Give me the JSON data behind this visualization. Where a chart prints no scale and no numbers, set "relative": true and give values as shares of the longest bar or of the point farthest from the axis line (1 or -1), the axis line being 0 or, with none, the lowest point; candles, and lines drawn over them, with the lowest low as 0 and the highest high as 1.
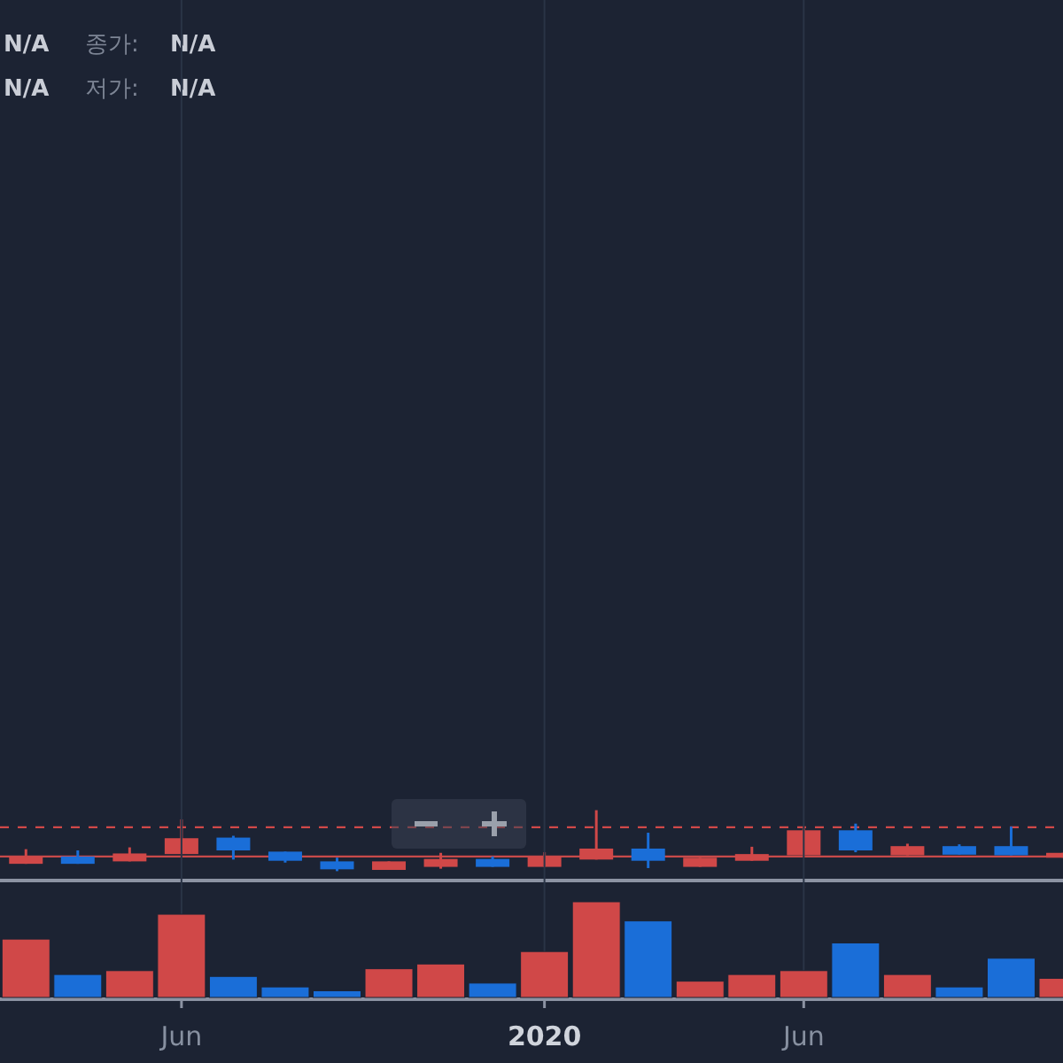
{
  "chart_data": [
    {
      "type": "candlestick",
      "relative": true,
      "annotations": [
        "N/A",
        "종가:",
        "N/A",
        "N/A",
        "저가:",
        "N/A"
      ],
      "categories": [
        null,
        null,
        null,
        null,
        null,
        null,
        null,
        null,
        null,
        null,
        null,
        null,
        null,
        null,
        null,
        null,
        null,
        null,
        null,
        null,
        null
      ],
      "ohlc": [
        [
          0.12,
          0.36,
          0.12,
          0.24
        ],
        [
          0.24,
          0.34,
          0.12,
          0.12
        ],
        [
          0.16,
          0.39,
          0.16,
          0.29
        ],
        [
          0.28,
          0.85,
          0.28,
          0.54
        ],
        [
          0.55,
          0.58,
          0.19,
          0.34
        ],
        [
          0.32,
          0.32,
          0.14,
          0.17
        ],
        [
          0.16,
          0.22,
          0,
          0.03
        ],
        [
          0.02,
          0.16,
          0.02,
          0.16
        ],
        [
          0.07,
          0.3,
          0.04,
          0.2
        ],
        [
          0.2,
          0.24,
          0.07,
          0.07
        ],
        [
          0.07,
          0.31,
          0.07,
          0.24
        ],
        [
          0.19,
          1,
          0.19,
          0.37
        ],
        [
          0.37,
          0.63,
          0.05,
          0.17
        ],
        [
          0.07,
          0.22,
          0.07,
          0.22
        ],
        [
          0.17,
          0.4,
          0.17,
          0.28
        ],
        [
          0.26,
          0.7,
          0.26,
          0.67
        ],
        [
          0.67,
          0.78,
          0.31,
          0.34
        ],
        [
          0.26,
          0.45,
          0.26,
          0.41
        ],
        [
          0.41,
          0.44,
          0.27,
          0.27
        ],
        [
          0.41,
          0.73,
          0.26,
          0.26
        ],
        [
          0.22,
          0.3,
          0.22,
          0.3
        ]
      ],
      "colors": [
        "#d04848",
        "#1a6ed8",
        "#d04848",
        "#d04848",
        "#1a6ed8",
        "#1a6ed8",
        "#1a6ed8",
        "#d04848",
        "#d04848",
        "#1a6ed8",
        "#d04848",
        "#d04848",
        "#1a6ed8",
        "#d04848",
        "#d04848",
        "#d04848",
        "#1a6ed8",
        "#d04848",
        "#1a6ed8",
        "#1a6ed8",
        "#d04848"
      ],
      "ref_lines": [
        {
          "axis": "y",
          "value": 0.72,
          "color": "#d04848",
          "line_style": "dashed"
        },
        {
          "axis": "y",
          "value": 0.24,
          "color": "#c84a4a",
          "line_style": "solid"
        }
      ]
    },
    {
      "type": "bar",
      "relative": true,
      "grid": "x",
      "x": [
        "2019-03",
        "2019-04",
        "2019-05",
        "2019-06",
        "2019-07",
        "2019-08",
        "2019-09",
        "2019-10",
        "2019-11",
        "2019-12",
        "2020-01",
        "2020-02",
        "2020-03",
        "2020-04",
        "2020-05",
        "2020-06",
        "2020-07",
        "2020-08",
        "2020-09",
        "2020-10",
        "2020-11"
      ],
      "xlim": [
        "2019-02-16",
        "2020-11-01"
      ],
      "xticks": [
        {
          "value": "2019-06",
          "label": "Jun"
        },
        "2020",
        {
          "value": "2020-06",
          "label": "Jun"
        }
      ],
      "values": [
        0.61,
        0.24,
        0.28,
        0.87,
        0.22,
        0.11,
        0.07,
        0.3,
        0.35,
        0.15,
        0.48,
        1,
        0.8,
        0.17,
        0.24,
        0.28,
        0.57,
        0.24,
        0.11,
        0.41,
        0.2
      ],
      "colors": [
        "#d04848",
        "#1a6ed8",
        "#d04848",
        "#d04848",
        "#1a6ed8",
        "#1a6ed8",
        "#1a6ed8",
        "#d04848",
        "#d04848",
        "#1a6ed8",
        "#d04848",
        "#d04848",
        "#1a6ed8",
        "#d04848",
        "#d04848",
        "#d04848",
        "#1a6ed8",
        "#d04848",
        "#1a6ed8",
        "#1a6ed8",
        "#d04848"
      ]
    }
  ]
}
